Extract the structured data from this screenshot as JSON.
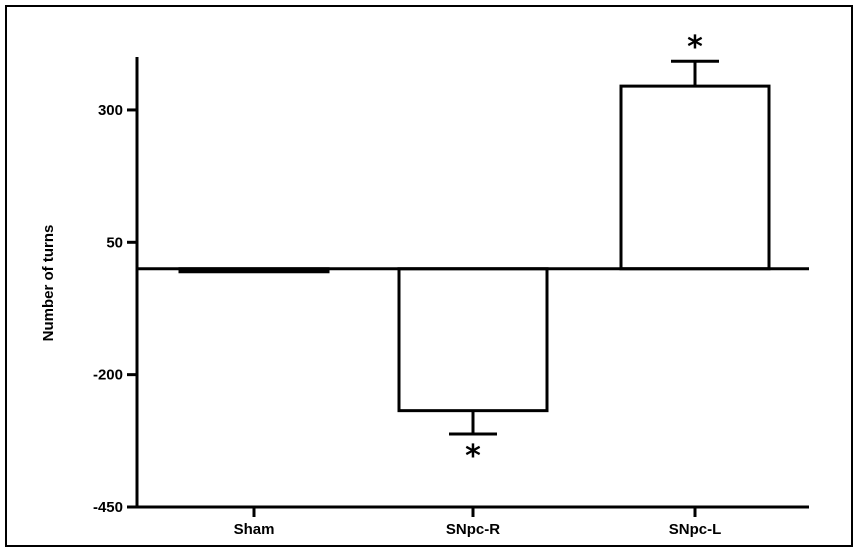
{
  "chart_data": {
    "type": "bar",
    "title": "",
    "xlabel": "",
    "ylabel": "Number of turns",
    "ylim": [
      -450,
      400
    ],
    "yticks": [
      -450,
      -200,
      50,
      300
    ],
    "categories": [
      "Sham",
      "SNpc-R",
      "SNpc-L"
    ],
    "series": [
      {
        "values": [
          -5,
          -268,
          345
        ],
        "errors": [
          0,
          44,
          47
        ],
        "significance": [
          "",
          "*",
          "*"
        ]
      }
    ],
    "grid": false,
    "legend": "none",
    "colors": {
      "bar_fill": "#ffffff",
      "bar_stroke": "#000000",
      "axis": "#000000"
    }
  }
}
